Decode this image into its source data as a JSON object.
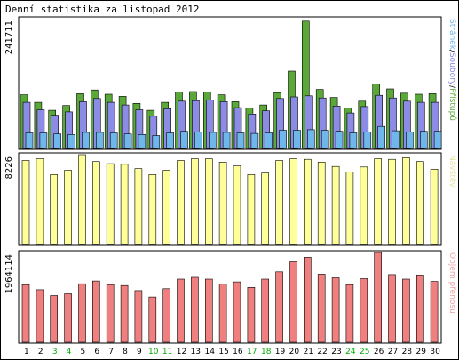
{
  "title": "Denní statistika za listopad 2012",
  "chart_data": [
    {
      "type": "bar",
      "name_key": "traffic",
      "ylabel": "241711",
      "legend": [
        {
          "text": "Stránek",
          "color": "#6fb6ea"
        },
        {
          "text": "Soubory",
          "color": "#8c8ce6"
        },
        {
          "text": "Přístupů",
          "color": "#5aa838"
        }
      ],
      "legend_separator": "/",
      "ymax": 241711,
      "categories": [
        "1",
        "2",
        "3",
        "4",
        "5",
        "6",
        "7",
        "8",
        "9",
        "10",
        "11",
        "12",
        "13",
        "14",
        "15",
        "16",
        "17",
        "18",
        "19",
        "20",
        "21",
        "22",
        "23",
        "24",
        "25",
        "26",
        "27",
        "28",
        "29",
        "30"
      ],
      "series": [
        {
          "name": "Přístupů",
          "color": "#5aa838",
          "values": [
            100000,
            86000,
            71000,
            80000,
            102000,
            109000,
            101000,
            97000,
            84000,
            71000,
            86000,
            105000,
            106000,
            105000,
            100000,
            87000,
            75000,
            81000,
            104000,
            144000,
            237000,
            110000,
            95000,
            75000,
            88000,
            120000,
            111000,
            103000,
            101000,
            102000
          ]
        },
        {
          "name": "Soubory",
          "color": "#8c8ce6",
          "values": [
            86000,
            72000,
            62000,
            68000,
            87000,
            93000,
            86000,
            81000,
            72000,
            60000,
            74000,
            88000,
            89000,
            90000,
            87000,
            76000,
            64000,
            70000,
            93000,
            96000,
            98000,
            94000,
            79000,
            66000,
            78000,
            99000,
            94000,
            88000,
            86000,
            86000
          ]
        },
        {
          "name": "Stránek",
          "color": "#6fb6ea",
          "values": [
            29000,
            29000,
            27000,
            26000,
            30000,
            30000,
            29000,
            27000,
            26000,
            24000,
            29000,
            32000,
            31000,
            30000,
            30000,
            29000,
            28000,
            29000,
            34000,
            34000,
            35000,
            34000,
            32000,
            29000,
            31000,
            41000,
            33000,
            31000,
            32000,
            32000
          ]
        }
      ]
    },
    {
      "type": "bar",
      "name_key": "visits",
      "ylabel": "8226",
      "legend": [
        {
          "text": "Návštěv",
          "color": "#e3e39c"
        }
      ],
      "ymax": 8226,
      "categories": [
        "1",
        "2",
        "3",
        "4",
        "5",
        "6",
        "7",
        "8",
        "9",
        "10",
        "11",
        "12",
        "13",
        "14",
        "15",
        "16",
        "17",
        "18",
        "19",
        "20",
        "21",
        "22",
        "23",
        "24",
        "25",
        "26",
        "27",
        "28",
        "29",
        "30"
      ],
      "series": [
        {
          "name": "Návštěv",
          "color": "#ffff99",
          "values": [
            7700,
            7850,
            6400,
            6800,
            8226,
            7600,
            7400,
            7350,
            6950,
            6400,
            6800,
            7700,
            7850,
            7850,
            7550,
            7200,
            6400,
            6550,
            7700,
            7850,
            7800,
            7550,
            7150,
            6650,
            7100,
            7850,
            7800,
            7950,
            7600,
            6900
          ]
        }
      ]
    },
    {
      "type": "bar",
      "name_key": "bytes",
      "ylabel": "1964114",
      "legend": [
        {
          "text": "Objem přenosu",
          "color": "#f0a0a0"
        }
      ],
      "ymax": 1964114,
      "categories": [
        "1",
        "2",
        "3",
        "4",
        "5",
        "6",
        "7",
        "8",
        "9",
        "10",
        "11",
        "12",
        "13",
        "14",
        "15",
        "16",
        "17",
        "18",
        "19",
        "20",
        "21",
        "22",
        "23",
        "24",
        "25",
        "26",
        "27",
        "28",
        "29",
        "30"
      ],
      "series": [
        {
          "name": "Objem přenosu",
          "color": "#f08080",
          "values": [
            1260000,
            1150000,
            1020000,
            1060000,
            1280000,
            1340000,
            1260000,
            1240000,
            1130000,
            990000,
            1170000,
            1380000,
            1420000,
            1380000,
            1270000,
            1320000,
            1200000,
            1380000,
            1540000,
            1760000,
            1860000,
            1490000,
            1410000,
            1260000,
            1390000,
            1964114,
            1480000,
            1380000,
            1470000,
            1330000
          ]
        }
      ]
    }
  ],
  "day_label_colors": {
    "weekday": "#000000",
    "weekend": "#00aa00"
  },
  "weekend_days": [
    "3",
    "4",
    "10",
    "11",
    "17",
    "18",
    "24",
    "25"
  ]
}
